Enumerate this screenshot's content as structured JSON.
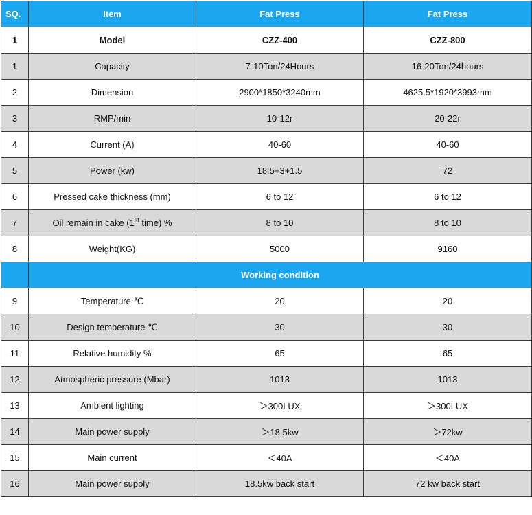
{
  "header": {
    "sq": "SQ.",
    "item": "Item",
    "col_a": "Fat Press",
    "col_b": "Fat Press"
  },
  "model_row": {
    "sq": "1",
    "item": "Model",
    "col_a": "CZZ-400",
    "col_b": "CZZ-800"
  },
  "rows": [
    {
      "sq": "1",
      "item": "Capacity",
      "col_a": "7-10Ton/24Hours",
      "col_b": "16-20Ton/24hours"
    },
    {
      "sq": "2",
      "item": "Dimension",
      "col_a": "2900*1850*3240mm",
      "col_b": "4625.5*1920*3993mm"
    },
    {
      "sq": "3",
      "item": "RMP/min",
      "col_a": "10-12r",
      "col_b": "20-22r"
    },
    {
      "sq": "4",
      "item": "Current (A)",
      "col_a": "40-60",
      "col_b": "40-60"
    },
    {
      "sq": "5",
      "item": "Power (kw)",
      "col_a": "18.5+3+1.5",
      "col_b": "72"
    },
    {
      "sq": "6",
      "item": "Pressed cake thickness (mm)",
      "col_a": "6 to 12",
      "col_b": "6 to 12"
    },
    {
      "sq": "7",
      "item_pre": "Oil remain in cake (1",
      "item_sup": "st",
      "item_post": " time) %",
      "col_a": "8 to 10",
      "col_b": "8 to 10"
    },
    {
      "sq": "8",
      "item": "Weight(KG)",
      "col_a": "5000",
      "col_b": "9160"
    }
  ],
  "section": {
    "title": "Working condition"
  },
  "conditions": [
    {
      "sq": "9",
      "item": "Temperature ℃",
      "col_a": "20",
      "col_b": "20"
    },
    {
      "sq": "10",
      "item": "Design temperature ℃",
      "col_a": "30",
      "col_b": "30"
    },
    {
      "sq": "11",
      "item": "Relative humidity %",
      "col_a": "65",
      "col_b": "65"
    },
    {
      "sq": "12",
      "item": "Atmospheric pressure (Mbar)",
      "col_a": "1013",
      "col_b": "1013"
    },
    {
      "sq": "13",
      "item": "Ambient lighting",
      "col_a": "＞300LUX",
      "col_b": "＞300LUX"
    },
    {
      "sq": "14",
      "item": "Main power supply",
      "col_a": "＞18.5kw",
      "col_b": "＞72kw"
    },
    {
      "sq": "15",
      "item": "Main current",
      "col_a": "＜40A",
      "col_b": "＜40A"
    },
    {
      "sq": "16",
      "item": "Main power supply",
      "col_a": "18.5kw back start",
      "col_b": "72 kw back start"
    }
  ]
}
